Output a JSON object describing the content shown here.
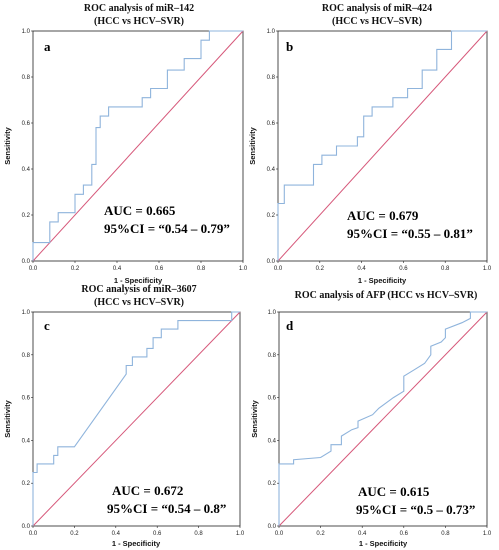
{
  "colors": {
    "roc": "#8fb4dc",
    "reference": "#d6587a",
    "frame": "#222222"
  },
  "chart_data": [
    {
      "type": "line",
      "title": "ROC analysis of miR–142",
      "subtitle": "(HCC vs HCV–SVR)",
      "panel": "a",
      "xlabel": "1 - Specificity",
      "ylabel": "Sensitivity",
      "xlim": [
        0,
        1
      ],
      "ylim": [
        0,
        1
      ],
      "xticks": [
        "0.0",
        "0.2",
        "0.4",
        "0.6",
        "0.8",
        "1.0"
      ],
      "yticks": [
        "0.0",
        "0.2",
        "0.4",
        "0.6",
        "0.8",
        "1.0"
      ],
      "auc_text": "AUC = 0.665",
      "ci_text": "95%CI = “0.54 – 0.79”",
      "series": [
        {
          "x": [
            0,
            0,
            0.08,
            0.08,
            0.12,
            0.12,
            0.2,
            0.2,
            0.24,
            0.24,
            0.28,
            0.28,
            0.3,
            0.3,
            0.32,
            0.32,
            0.36,
            0.36,
            0.52,
            0.52,
            0.56,
            0.56,
            0.64,
            0.64,
            0.72,
            0.72,
            0.8,
            0.8,
            0.84,
            0.84,
            1.0
          ],
          "y": [
            0,
            0.08,
            0.08,
            0.17,
            0.17,
            0.21,
            0.21,
            0.29,
            0.29,
            0.33,
            0.33,
            0.42,
            0.42,
            0.58,
            0.58,
            0.63,
            0.63,
            0.67,
            0.67,
            0.71,
            0.71,
            0.75,
            0.75,
            0.83,
            0.83,
            0.88,
            0.88,
            0.96,
            0.96,
            1.0,
            1.0
          ]
        }
      ]
    },
    {
      "type": "line",
      "title": "ROC analysis of miR–424",
      "subtitle": "(HCC vs HCV–SVR)",
      "panel": "b",
      "xlabel": "1 - Specificity",
      "ylabel": "Sensitivity",
      "xlim": [
        0,
        1
      ],
      "ylim": [
        0,
        1
      ],
      "xticks": [
        "0.0",
        "0.2",
        "0.4",
        "0.6",
        "0.8",
        "1.0"
      ],
      "yticks": [
        "0.0",
        "0.2",
        "0.4",
        "0.6",
        "0.8",
        "1.0"
      ],
      "auc_text": "AUC = 0.679",
      "ci_text": "95%CI = “0.55 – 0.81”",
      "series": [
        {
          "x": [
            0,
            0,
            0.03,
            0.03,
            0.17,
            0.17,
            0.21,
            0.21,
            0.28,
            0.28,
            0.38,
            0.38,
            0.41,
            0.41,
            0.45,
            0.45,
            0.55,
            0.55,
            0.62,
            0.62,
            0.69,
            0.69,
            0.76,
            0.76,
            0.83,
            0.83,
            1.0
          ],
          "y": [
            0,
            0.25,
            0.25,
            0.33,
            0.33,
            0.42,
            0.42,
            0.46,
            0.46,
            0.5,
            0.5,
            0.54,
            0.54,
            0.63,
            0.63,
            0.67,
            0.67,
            0.71,
            0.71,
            0.75,
            0.75,
            0.83,
            0.83,
            0.92,
            0.92,
            1.0,
            1.0
          ]
        }
      ]
    },
    {
      "type": "line",
      "title": "ROC analysis of miR–3607",
      "subtitle": "(HCC vs HCV–SVR)",
      "panel": "c",
      "xlabel": "1 - Specificity",
      "ylabel": "Sensitivity",
      "xlim": [
        0,
        1
      ],
      "ylim": [
        0,
        1
      ],
      "xticks": [
        "0.0",
        "0.2",
        "0.4",
        "0.6",
        "0.8",
        "1.0"
      ],
      "yticks": [
        "0.0",
        "0.2",
        "0.4",
        "0.6",
        "0.8",
        "1.0"
      ],
      "auc_text": "AUC = 0.672",
      "ci_text": "95%CI = “0.54 – 0.8”",
      "series": [
        {
          "x": [
            0,
            0,
            0.02,
            0.02,
            0.1,
            0.1,
            0.12,
            0.12,
            0.2,
            0.45,
            0.45,
            0.48,
            0.48,
            0.55,
            0.55,
            0.58,
            0.58,
            0.62,
            0.62,
            0.7,
            0.7,
            0.96,
            0.96,
            1.0
          ],
          "y": [
            0,
            0.25,
            0.25,
            0.29,
            0.29,
            0.33,
            0.33,
            0.37,
            0.37,
            0.71,
            0.75,
            0.75,
            0.79,
            0.79,
            0.83,
            0.83,
            0.88,
            0.88,
            0.92,
            0.92,
            0.96,
            0.96,
            1.0,
            1.0
          ]
        }
      ]
    },
    {
      "type": "line",
      "title": "ROC analysis of AFP (HCC vs HCV–SVR)",
      "panel": "d",
      "xlabel": "1 - Specificity",
      "ylabel": "Sensitivity",
      "xlim": [
        0,
        1
      ],
      "ylim": [
        0,
        1
      ],
      "xticks": [
        "0.0",
        "0.2",
        "0.4",
        "0.6",
        "0.8",
        "1.0"
      ],
      "yticks": [
        "0.0",
        "0.2",
        "0.4",
        "0.6",
        "0.8",
        "1.0"
      ],
      "auc_text": "AUC = 0.615",
      "ci_text": "95%CI = “0.5 – 0.73”",
      "series": [
        {
          "x": [
            0,
            0,
            0.07,
            0.07,
            0.2,
            0.25,
            0.25,
            0.3,
            0.3,
            0.35,
            0.38,
            0.38,
            0.45,
            0.48,
            0.55,
            0.6,
            0.6,
            0.65,
            0.7,
            0.73,
            0.73,
            0.78,
            0.8,
            0.8,
            0.88,
            0.92,
            0.92,
            1.0
          ],
          "y": [
            0,
            0.29,
            0.29,
            0.31,
            0.32,
            0.35,
            0.38,
            0.38,
            0.42,
            0.45,
            0.46,
            0.49,
            0.52,
            0.55,
            0.6,
            0.63,
            0.7,
            0.73,
            0.76,
            0.8,
            0.84,
            0.86,
            0.88,
            0.92,
            0.95,
            0.97,
            1.0,
            1.0
          ]
        }
      ]
    }
  ]
}
